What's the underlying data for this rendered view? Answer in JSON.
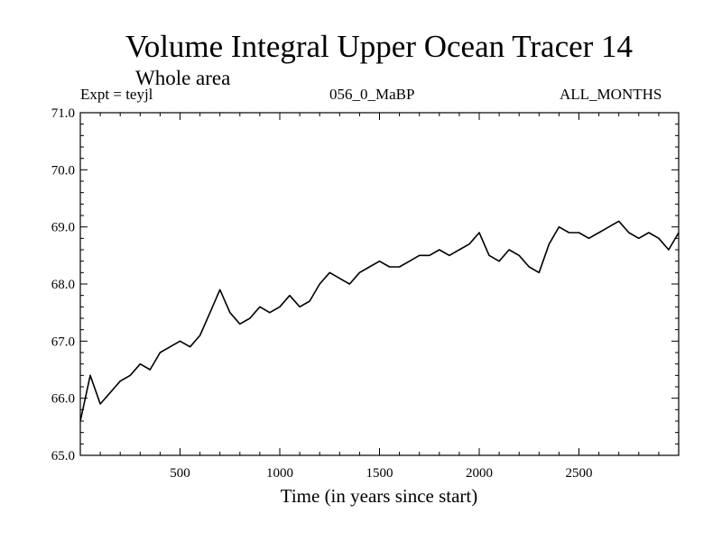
{
  "header": {
    "title": "Volume Integral Upper Ocean Tracer 14",
    "subtitle": "Whole area",
    "expt": "Expt = teyjl",
    "run": "056_0_MaBP",
    "months": "ALL_MONTHS"
  },
  "chart_data": {
    "type": "line",
    "title": "Volume Integral Upper Ocean Tracer 14",
    "subtitle": "Whole area",
    "xlabel": "Time (in years since start)",
    "ylabel": "",
    "xlim": [
      0,
      3000
    ],
    "ylim": [
      65.0,
      71.0
    ],
    "xticks": [
      500,
      1000,
      1500,
      2000,
      2500
    ],
    "xtick_labels": [
      "500",
      "1000",
      "1500",
      "2000",
      "2500"
    ],
    "yticks": [
      65.0,
      66.0,
      67.0,
      68.0,
      69.0,
      70.0,
      71.0
    ],
    "ytick_labels": [
      "65.0",
      "66.0",
      "67.0",
      "68.0",
      "69.0",
      "70.0",
      "71.0"
    ],
    "grid": false,
    "series": [
      {
        "name": "Tracer 14",
        "x": [
          0,
          50,
          100,
          150,
          200,
          250,
          300,
          350,
          400,
          450,
          500,
          550,
          600,
          650,
          700,
          750,
          800,
          850,
          900,
          950,
          1000,
          1050,
          1100,
          1150,
          1200,
          1250,
          1300,
          1350,
          1400,
          1450,
          1500,
          1550,
          1600,
          1650,
          1700,
          1750,
          1800,
          1850,
          1900,
          1950,
          2000,
          2050,
          2100,
          2150,
          2200,
          2250,
          2300,
          2350,
          2400,
          2450,
          2500,
          2550,
          2600,
          2650,
          2700,
          2750,
          2800,
          2850,
          2900,
          2950,
          3000
        ],
        "values": [
          65.6,
          66.4,
          65.9,
          66.1,
          66.3,
          66.4,
          66.6,
          66.5,
          66.8,
          66.9,
          67.0,
          66.9,
          67.1,
          67.5,
          67.9,
          67.5,
          67.3,
          67.4,
          67.6,
          67.5,
          67.6,
          67.8,
          67.6,
          67.7,
          68.0,
          68.2,
          68.1,
          68.0,
          68.2,
          68.3,
          68.4,
          68.3,
          68.3,
          68.4,
          68.5,
          68.5,
          68.6,
          68.5,
          68.6,
          68.7,
          68.9,
          68.5,
          68.4,
          68.6,
          68.5,
          68.3,
          68.2,
          68.7,
          69.0,
          68.9,
          68.9,
          68.8,
          68.9,
          69.0,
          69.1,
          68.9,
          68.8,
          68.9,
          68.8,
          68.6,
          68.9
        ],
        "color": "#000000"
      }
    ]
  }
}
